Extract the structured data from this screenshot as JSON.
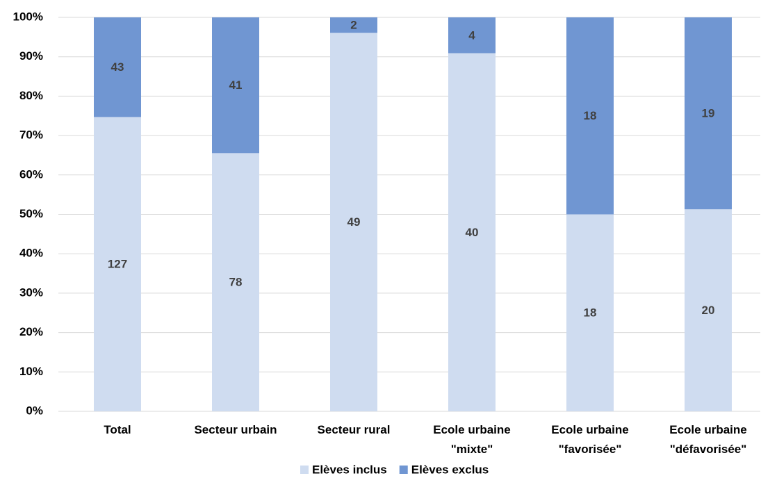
{
  "chart_data": {
    "type": "bar",
    "stacking": "percent",
    "categories": [
      "Total",
      "Secteur urbain",
      "Secteur rural",
      "Ecole urbaine\n\"mixte\"",
      "Ecole urbaine\n\"favorisée\"",
      "Ecole urbaine\n\"défavorisée\""
    ],
    "series": [
      {
        "name": "Elèves inclus",
        "color": "#cfdcf0",
        "values": [
          127,
          78,
          49,
          40,
          18,
          20
        ]
      },
      {
        "name": "Elèves exclus",
        "color": "#7096d2",
        "values": [
          43,
          41,
          2,
          4,
          18,
          19
        ]
      }
    ],
    "ylim": [
      0,
      100
    ],
    "yticks": [
      {
        "value": 0,
        "label": "0%"
      },
      {
        "value": 10,
        "label": "10%"
      },
      {
        "value": 20,
        "label": "20%"
      },
      {
        "value": 30,
        "label": "30%"
      },
      {
        "value": 40,
        "label": "40%"
      },
      {
        "value": 50,
        "label": "50%"
      },
      {
        "value": 60,
        "label": "60%"
      },
      {
        "value": 70,
        "label": "70%"
      },
      {
        "value": 80,
        "label": "80%"
      },
      {
        "value": 90,
        "label": "90%"
      },
      {
        "value": 100,
        "label": "100%"
      }
    ],
    "grid": true,
    "legend": "bottom"
  }
}
